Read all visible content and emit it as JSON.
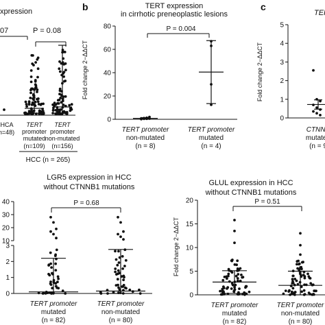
{
  "figure": {
    "panel_letters": [
      "b",
      "c"
    ],
    "hcc_group_label": "HCC (n = 265)",
    "ylabel_fold": "Fold change 2−ΔΔCT"
  },
  "chart_data": [
    {
      "id": "a-partial",
      "type": "scatter",
      "title_fragment": "xpression",
      "p_values": [
        "07",
        "P = 0.08"
      ],
      "categories": [
        {
          "lines": [
            "HCA",
            "(n=48)"
          ]
        },
        {
          "lines": [
            "TERT",
            "promoter",
            "mutated",
            "(n=109)"
          ]
        },
        {
          "lines": [
            "TERT",
            "promoter",
            "non-mutated",
            "(n=156)"
          ]
        }
      ],
      "group_label": "HCC (n = 265)"
    },
    {
      "id": "b",
      "type": "scatter",
      "title": [
        "TERT expression",
        "in cirrhotic preneoplastic lesions"
      ],
      "ylabel": "Fold change 2−ΔΔCT",
      "ylim": [
        0,
        80
      ],
      "yticks": [
        "0",
        "20",
        "40",
        "60",
        "80"
      ],
      "p_value": "P = 0.004",
      "categories": [
        {
          "lines": [
            "TERT promoter",
            "non-mutated",
            "(n = 8)"
          ]
        },
        {
          "lines": [
            "TERT promoter",
            "mutated",
            "(n = 4)"
          ]
        }
      ],
      "series": [
        {
          "values": [
            0.2,
            0.4,
            0.5,
            0.6,
            0.8,
            1.0,
            1.3,
            2.0
          ],
          "mean": 0.8,
          "sd": 0.6
        },
        {
          "values": [
            12.5,
            30,
            63,
            67
          ],
          "mean": 40.5,
          "sd": 27
        }
      ]
    },
    {
      "id": "c-partial",
      "type": "scatter",
      "title_fragment": "TERT",
      "ylabel": "Fold change 2−ΔΔCT",
      "ylim": [
        0,
        5
      ],
      "yticks": [
        "0",
        "1",
        "2",
        "3",
        "4",
        "5"
      ],
      "categories": [
        {
          "lines": [
            "CTNNB",
            "mutated",
            "(n = 9"
          ]
        }
      ],
      "series": [
        {
          "values": [
            2.55,
            1.0,
            0.9,
            0.7,
            0.55,
            0.45,
            0.35,
            0.25,
            0.15
          ],
          "mean": 0.72,
          "sd": 0.25
        }
      ]
    },
    {
      "id": "lgr5",
      "type": "scatter",
      "title": [
        "LGR5 expression in HCC",
        "without CTNNB1 mutations"
      ],
      "ylim": [
        0,
        40
      ],
      "yticks_upper": [
        "10",
        "20",
        "30",
        "40"
      ],
      "yticks_lower": [
        "0",
        "1",
        "2",
        "3"
      ],
      "broken_axis": true,
      "p_value": "P = 0.68",
      "categories": [
        {
          "lines": [
            "TERT promoter",
            "mutated",
            "(n = 82)"
          ]
        },
        {
          "lines": [
            "TERT promoter",
            "non-mutated",
            "(n = 80)"
          ]
        }
      ],
      "series": [
        {
          "mean": 0.1,
          "sd": 2.1
        },
        {
          "mean": 0.15,
          "sd": 2.6
        }
      ]
    },
    {
      "id": "glul",
      "type": "scatter",
      "title": [
        "GLUL expression in HCC",
        "without CTNNB1 mutations"
      ],
      "ylabel": "Fold change 2−ΔΔCT",
      "ylim": [
        0,
        20
      ],
      "yticks": [
        "0",
        "5",
        "10",
        "15",
        "20"
      ],
      "p_value": "P = 0.51",
      "categories": [
        {
          "lines": [
            "TERT promoter",
            "mutated",
            "(n = 82)"
          ]
        },
        {
          "lines": [
            "TERT promoter",
            "non-mutated",
            "(n = 80)"
          ]
        }
      ],
      "series": [
        {
          "mean": 2.7,
          "sd": 2.4
        },
        {
          "mean": 2.0,
          "sd": 3.0
        }
      ]
    }
  ]
}
